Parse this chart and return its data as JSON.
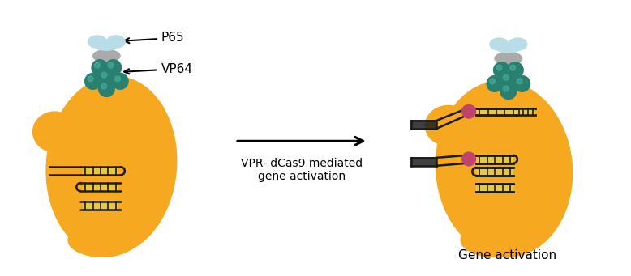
{
  "arrow_label": "VPR- dCas9 mediated\ngene activation",
  "gene_activation_label": "Gene activation",
  "label_p65": "P65",
  "label_vp64": "VP64",
  "cell_color": "#F5A820",
  "dna_color": "#1a1a1a",
  "p65_color": "#b8dce8",
  "vp64_color": "#2a8070",
  "gray_color": "#aaaaaa",
  "dot_color": "#c0446a",
  "yellow_rung": "#e8c840",
  "background_color": "#ffffff",
  "figsize": [
    7.78,
    3.41
  ],
  "dpi": 100
}
